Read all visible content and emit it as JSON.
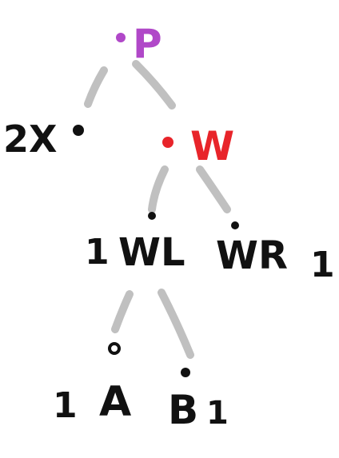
{
  "nodes": {
    "root": {
      "label": "P",
      "color": "#b048c8"
    },
    "left_leaf": {
      "label": "2X"
    },
    "w": {
      "label": "W",
      "color": "#e8242a"
    },
    "wl": {
      "label": "WL",
      "count": "1"
    },
    "wr": {
      "label": "WR",
      "count": "1"
    },
    "a": {
      "label": "A",
      "count": "1"
    },
    "b": {
      "label": "B",
      "count": "1"
    }
  },
  "colors": {
    "ink": "#111111",
    "edge": "#c0c0c0"
  }
}
